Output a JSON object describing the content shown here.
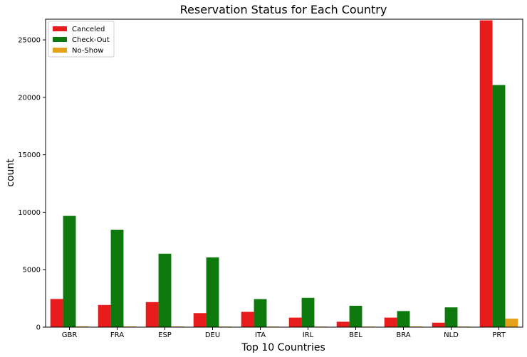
{
  "chart_data": {
    "type": "bar",
    "title": "Reservation Status for Each Country",
    "xlabel": "Top 10 Countries",
    "ylabel": "count",
    "categories": [
      "GBR",
      "FRA",
      "ESP",
      "DEU",
      "ITA",
      "IRL",
      "BEL",
      "BRA",
      "NLD",
      "PRT"
    ],
    "series": [
      {
        "name": "Canceled",
        "color": "#e81c1c",
        "values": [
          2450,
          1930,
          2180,
          1220,
          1330,
          830,
          470,
          830,
          390,
          26700
        ]
      },
      {
        "name": "Check-Out",
        "color": "#0e7a0e",
        "values": [
          9680,
          8480,
          6390,
          6070,
          2440,
          2550,
          1860,
          1400,
          1720,
          21070
        ]
      },
      {
        "name": "No-Show",
        "color": "#e5a11a",
        "values": [
          70,
          60,
          60,
          30,
          20,
          20,
          10,
          60,
          10,
          740
        ]
      }
    ],
    "ylim": [
      0,
      26800
    ],
    "yticks": [
      0,
      5000,
      10000,
      15000,
      20000,
      25000
    ],
    "grid": false,
    "legend_position": "top-left"
  }
}
